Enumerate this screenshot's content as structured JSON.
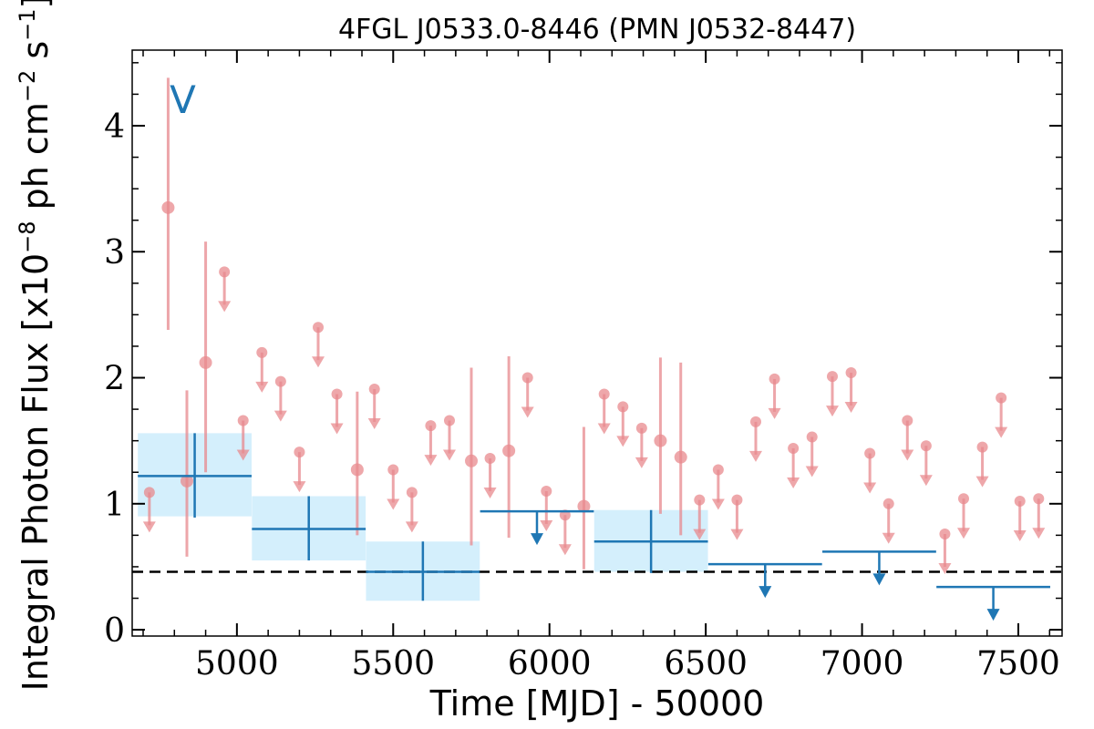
{
  "chart_data": {
    "type": "scatter",
    "title": "4FGL J0533.0-8446 (PMN J0532-8447)",
    "xlabel": "Time [MJD] - 50000",
    "ylabel": "Integral Photon Flux [x10",
    "ylabel_exp1": "−8",
    "ylabel_mid": " ph cm",
    "ylabel_exp2": "−2",
    "ylabel_mid2": " s",
    "ylabel_exp3": "−1",
    "ylabel_end": "]",
    "annotation": "V",
    "xlim": [
      4665,
      7640
    ],
    "ylim": [
      -0.05,
      4.6
    ],
    "xticks": [
      5000,
      5500,
      6000,
      6500,
      7000,
      7500
    ],
    "yticks": [
      0,
      1,
      2,
      3,
      4
    ],
    "reference_line": 0.46,
    "colors": {
      "long_bins": "#1f77b4",
      "band": "#d4effc",
      "short_bins": "#e8898e",
      "reference": "#000000"
    },
    "long_bin_detections": [
      {
        "x": 4865,
        "xerr": 182,
        "y": 1.22,
        "yerr_low": 0.33,
        "yerr_high": 0.34,
        "band_low": 0.9,
        "band_high": 1.56
      },
      {
        "x": 5230,
        "xerr": 182,
        "y": 0.8,
        "yerr_low": 0.25,
        "yerr_high": 0.26,
        "band_low": 0.55,
        "band_high": 1.06
      },
      {
        "x": 5595,
        "xerr": 182,
        "y": 0.46,
        "yerr_low": 0.23,
        "yerr_high": 0.24,
        "band_low": 0.23,
        "band_high": 0.7
      },
      {
        "x": 6325,
        "xerr": 182,
        "y": 0.7,
        "yerr_low": 0.25,
        "yerr_high": 0.25,
        "band_low": 0.46,
        "band_high": 0.95
      }
    ],
    "long_bin_upper_limits": [
      {
        "x": 5960,
        "xerr": 182,
        "y": 0.94
      },
      {
        "x": 6690,
        "xerr": 182,
        "y": 0.52
      },
      {
        "x": 7055,
        "xerr": 182,
        "y": 0.62
      },
      {
        "x": 7420,
        "xerr": 182,
        "y": 0.34
      }
    ],
    "short_bin_detections": [
      {
        "x": 4780,
        "y": 3.35,
        "yerr_low": 0.97,
        "yerr_high": 1.03
      },
      {
        "x": 4840,
        "y": 1.18,
        "yerr_low": 0.6,
        "yerr_high": 0.72
      },
      {
        "x": 4900,
        "y": 2.12,
        "yerr_low": 0.87,
        "yerr_high": 0.96
      },
      {
        "x": 5385,
        "y": 1.27,
        "yerr_low": 0.52,
        "yerr_high": 0.62
      },
      {
        "x": 5750,
        "y": 1.34,
        "yerr_low": 0.67,
        "yerr_high": 0.74
      },
      {
        "x": 5870,
        "y": 1.42,
        "yerr_low": 0.69,
        "yerr_high": 0.75
      },
      {
        "x": 6110,
        "y": 0.98,
        "yerr_low": 0.5,
        "yerr_high": 0.63
      },
      {
        "x": 6355,
        "y": 1.5,
        "yerr_low": 0.58,
        "yerr_high": 0.66
      },
      {
        "x": 6420,
        "y": 1.37,
        "yerr_low": 0.62,
        "yerr_high": 0.75
      }
    ],
    "short_bin_upper_limits": [
      {
        "x": 4720,
        "y": 1.09
      },
      {
        "x": 4960,
        "y": 2.84
      },
      {
        "x": 5020,
        "y": 1.66
      },
      {
        "x": 5080,
        "y": 2.2
      },
      {
        "x": 5140,
        "y": 1.97
      },
      {
        "x": 5200,
        "y": 1.41
      },
      {
        "x": 5260,
        "y": 2.4
      },
      {
        "x": 5320,
        "y": 1.87
      },
      {
        "x": 5440,
        "y": 1.91
      },
      {
        "x": 5500,
        "y": 1.27
      },
      {
        "x": 5560,
        "y": 1.09
      },
      {
        "x": 5620,
        "y": 1.62
      },
      {
        "x": 5680,
        "y": 1.66
      },
      {
        "x": 5810,
        "y": 1.36
      },
      {
        "x": 5930,
        "y": 2.0
      },
      {
        "x": 5990,
        "y": 1.1
      },
      {
        "x": 6050,
        "y": 0.91
      },
      {
        "x": 6175,
        "y": 1.87
      },
      {
        "x": 6235,
        "y": 1.77
      },
      {
        "x": 6295,
        "y": 1.6
      },
      {
        "x": 6480,
        "y": 1.03
      },
      {
        "x": 6540,
        "y": 1.27
      },
      {
        "x": 6600,
        "y": 1.03
      },
      {
        "x": 6660,
        "y": 1.65
      },
      {
        "x": 6720,
        "y": 1.99
      },
      {
        "x": 6780,
        "y": 1.44
      },
      {
        "x": 6840,
        "y": 1.53
      },
      {
        "x": 6905,
        "y": 2.01
      },
      {
        "x": 6965,
        "y": 2.04
      },
      {
        "x": 7025,
        "y": 1.4
      },
      {
        "x": 7085,
        "y": 1.0
      },
      {
        "x": 7145,
        "y": 1.66
      },
      {
        "x": 7205,
        "y": 1.46
      },
      {
        "x": 7265,
        "y": 0.76
      },
      {
        "x": 7325,
        "y": 1.04
      },
      {
        "x": 7385,
        "y": 1.45
      },
      {
        "x": 7445,
        "y": 1.84
      },
      {
        "x": 7505,
        "y": 1.02
      },
      {
        "x": 7565,
        "y": 1.04
      }
    ]
  }
}
